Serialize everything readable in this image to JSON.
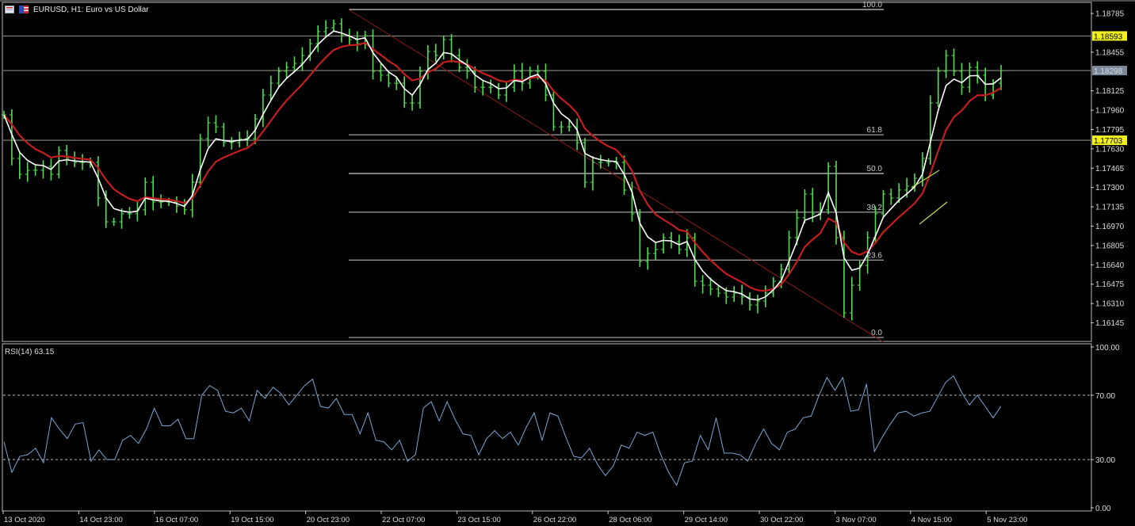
{
  "header": {
    "symbol_title": "EURUSD, H1:  Euro vs US Dollar",
    "icons": [
      "chart-window-icon",
      "eu-us-flag-icon"
    ]
  },
  "colors": {
    "background": "#000000",
    "bars": "#4fe04f",
    "ma_fast": "#ffffff",
    "ma_slow": "#c41e1e",
    "fib_trendline": "#8b1a1a",
    "fib_levels": "#c8c8c8",
    "hlines": "#8c8c80",
    "price_tag_yellow": "#f0f020",
    "price_tag_current": "#7d8a99",
    "rsi_line": "#7aa6d6",
    "short_trendlines": "#b8d860"
  },
  "chart_data": [
    {
      "type": "line",
      "panel": "main",
      "symbol": "EURUSD",
      "timeframe": "H1",
      "ylim": [
        1.15993,
        1.18873
      ],
      "y_ticks": [
        "1.18785",
        "1.18455",
        "1.18125",
        "1.17960",
        "1.17795",
        "1.17630",
        "1.17465",
        "1.17300",
        "1.17135",
        "1.16970",
        "1.16805",
        "1.16640",
        "1.16475",
        "1.16310",
        "1.16145"
      ],
      "y_tick_values": [
        1.18785,
        1.18455,
        1.18125,
        1.1796,
        1.17795,
        1.1763,
        1.17465,
        1.173,
        1.17135,
        1.1697,
        1.16805,
        1.1664,
        1.16475,
        1.1631,
        1.16145
      ],
      "x_ticks": [
        "13 Oct 2020",
        "14 Oct 23:00",
        "16 Oct 07:00",
        "19 Oct 15:00",
        "20 Oct 23:00",
        "22 Oct 07:00",
        "23 Oct 15:00",
        "26 Oct 22:00",
        "28 Oct 06:00",
        "29 Oct 14:00",
        "30 Oct 22:00",
        "3 Nov 07:00",
        "4 Nov 15:00",
        "5 Nov 23:00"
      ],
      "close": [
        1.1792,
        1.17548,
        1.17413,
        1.17447,
        1.17447,
        1.1748,
        1.17413,
        1.17616,
        1.17548,
        1.17514,
        1.17514,
        1.17514,
        1.1721,
        1.17007,
        1.17007,
        1.17075,
        1.17075,
        1.17109,
        1.17345,
        1.17176,
        1.17176,
        1.17176,
        1.17142,
        1.17109,
        1.17345,
        1.17717,
        1.17852,
        1.17818,
        1.17683,
        1.17683,
        1.17717,
        1.17717,
        1.17886,
        1.18089,
        1.1819,
        1.18292,
        1.18325,
        1.18359,
        1.18427,
        1.18528,
        1.1863,
        1.18663,
        1.18697,
        1.18596,
        1.18562,
        1.18528,
        1.18596,
        1.18292,
        1.18258,
        1.1819,
        1.1819,
        1.18021,
        1.18021,
        1.18292,
        1.18461,
        1.18427,
        1.18562,
        1.18427,
        1.18325,
        1.18292,
        1.18156,
        1.18156,
        1.18156,
        1.18089,
        1.18156,
        1.18292,
        1.1819,
        1.18292,
        1.18292,
        1.18089,
        1.17818,
        1.17818,
        1.17818,
        1.17683,
        1.17345,
        1.17514,
        1.17514,
        1.17514,
        1.17514,
        1.17278,
        1.17075,
        1.16669,
        1.16737,
        1.16771,
        1.16872,
        1.16838,
        1.16771,
        1.16872,
        1.165,
        1.16466,
        1.16433,
        1.16399,
        1.16365,
        1.16399,
        1.16365,
        1.16297,
        1.16331,
        1.16399,
        1.165,
        1.16602,
        1.16872,
        1.17041,
        1.17244,
        1.17075,
        1.17109,
        1.1748,
        1.16872,
        1.1623,
        1.16466,
        1.16635,
        1.16872,
        1.17075,
        1.17244,
        1.1721,
        1.17278,
        1.17311,
        1.17379,
        1.17548,
        1.18021,
        1.18292,
        1.18427,
        1.18292,
        1.18156,
        1.18325,
        1.18258,
        1.18089,
        1.1819,
        1.18298
      ],
      "horizontal_lines": [
        {
          "price": 1.18593,
          "label": "1.18593",
          "style": "yellow"
        },
        {
          "price": 1.18298,
          "label": "1.18298",
          "style": "current"
        },
        {
          "price": 1.17703,
          "label": "1.17703",
          "style": "yellow"
        }
      ],
      "fibonacci": {
        "high": 1.18819,
        "low": 1.1602,
        "levels": [
          {
            "ratio": 1.0,
            "label": "100.0"
          },
          {
            "ratio": 0.618,
            "label": "61.8"
          },
          {
            "ratio": 0.5,
            "label": "50.0"
          },
          {
            "ratio": 0.382,
            "label": "38.2"
          },
          {
            "ratio": 0.236,
            "label": "23.6"
          },
          {
            "ratio": 0.0,
            "label": "0.0"
          }
        ]
      },
      "grid": false
    },
    {
      "type": "line",
      "panel": "indicator",
      "label": "RSI(14) 63.15",
      "ylim": [
        0,
        100
      ],
      "y_ticks": [
        "100.00",
        "70.00",
        "30.00",
        "0.00"
      ],
      "y_tick_values": [
        100,
        70,
        30,
        0
      ],
      "levels": [
        70,
        30
      ],
      "values": [
        41,
        22,
        32,
        33,
        37,
        28,
        56,
        49,
        43,
        52,
        53,
        29,
        36,
        30,
        30,
        42,
        45,
        40,
        49,
        62,
        51,
        51,
        55,
        43,
        43,
        70,
        76,
        73,
        60,
        59,
        62,
        54,
        73,
        68,
        75,
        71,
        64,
        70,
        76,
        80,
        63,
        62,
        68,
        58,
        58,
        46,
        59,
        42,
        41,
        36,
        42,
        29,
        33,
        62,
        66,
        54,
        66,
        55,
        46,
        45,
        33,
        43,
        48,
        43,
        47,
        39,
        50,
        59,
        42,
        59,
        57,
        44,
        32,
        31,
        37,
        27,
        20,
        26,
        39,
        37,
        47,
        45,
        47,
        33,
        22,
        14,
        28,
        29,
        45,
        36,
        56,
        34,
        34,
        33,
        29,
        40,
        49,
        40,
        36,
        47,
        49,
        56,
        57,
        70,
        81,
        73,
        81,
        60,
        61,
        77,
        35,
        44,
        52,
        59,
        60,
        57,
        59,
        60,
        69,
        78,
        82,
        72,
        64,
        70,
        63,
        56,
        63.15
      ]
    }
  ]
}
